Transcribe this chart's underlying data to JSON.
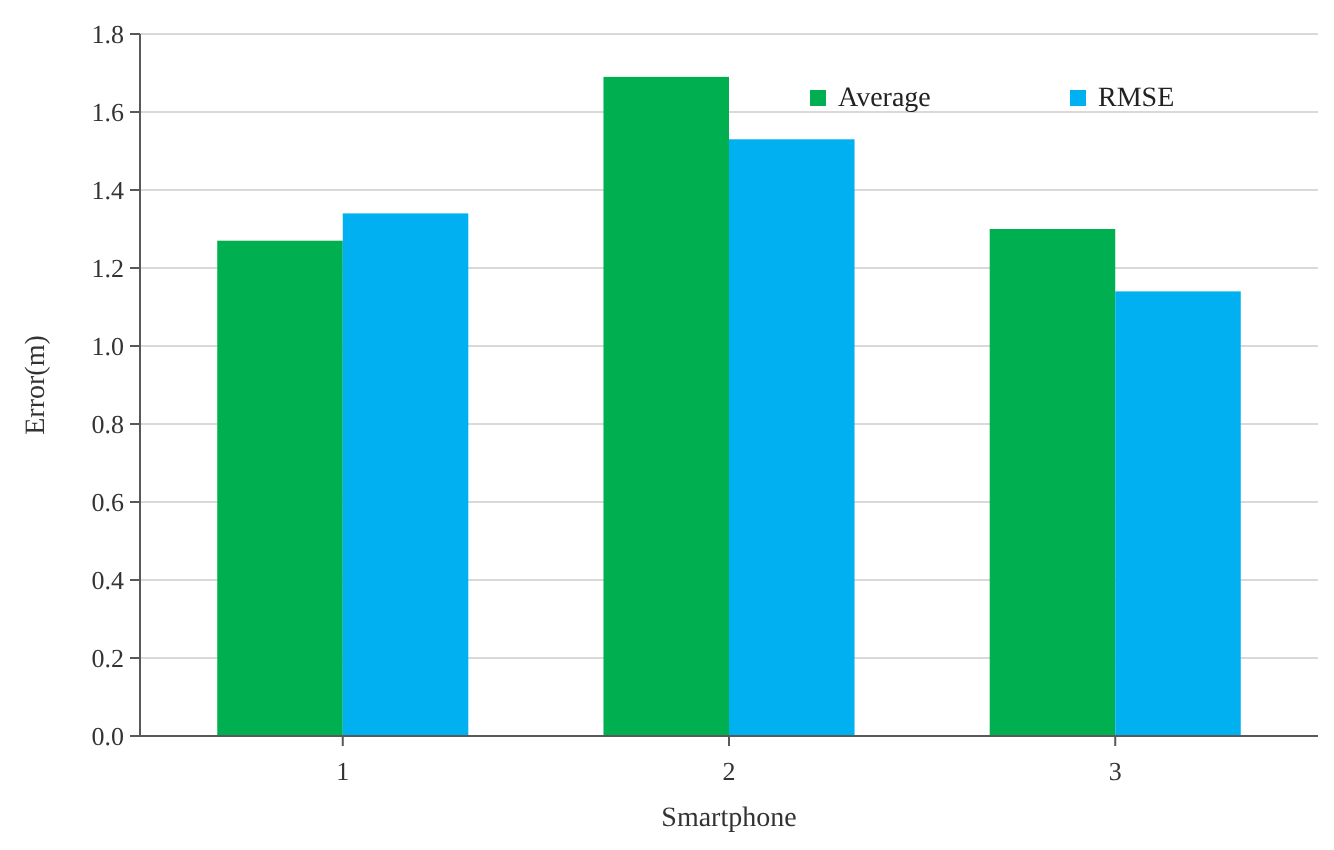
{
  "chart_data": {
    "type": "bar",
    "xlabel": "Smartphone",
    "ylabel": "Error(m)",
    "categories": [
      "1",
      "2",
      "3"
    ],
    "series": [
      {
        "name": "Average",
        "color": "#00b050",
        "values": [
          1.27,
          1.69,
          1.3
        ]
      },
      {
        "name": "RMSE",
        "color": "#00b0f0",
        "values": [
          1.34,
          1.53,
          1.14
        ]
      }
    ],
    "ylim": [
      0,
      1.8
    ],
    "yticks": [
      {
        "value": 0,
        "label": "0.0"
      },
      {
        "value": 0.2,
        "label": "0.2"
      },
      {
        "value": 0.4,
        "label": "0.4"
      },
      {
        "value": 0.6,
        "label": "0.6"
      },
      {
        "value": 0.8,
        "label": "0.8"
      },
      {
        "value": 1,
        "label": "1.0"
      },
      {
        "value": 1.2,
        "label": "1.2"
      },
      {
        "value": 1.4,
        "label": "1.4"
      },
      {
        "value": 1.6,
        "label": "1.6"
      },
      {
        "value": 1.8,
        "label": "1.8"
      }
    ],
    "grid": "y",
    "legend": "top right"
  }
}
